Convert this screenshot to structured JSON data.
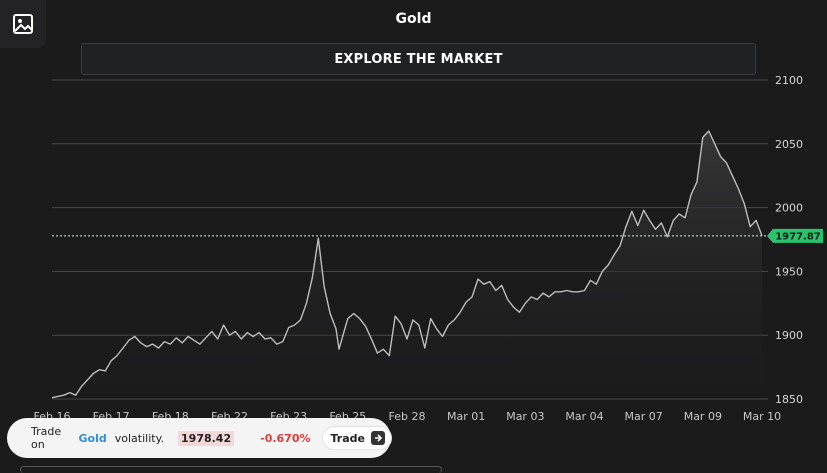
{
  "header": {
    "title": "Gold",
    "explore_label": "EXPLORE THE MARKET",
    "image_icon": "image-icon"
  },
  "chart_data": {
    "type": "area",
    "title": "Gold",
    "xlabel": "",
    "ylabel": "",
    "ylim": [
      1848,
      2105
    ],
    "y_ticks": [
      1850,
      1900,
      1950,
      2000,
      2050,
      2100
    ],
    "x_ticks": [
      "Feb 16",
      "Feb 17",
      "Feb 18",
      "Feb 22",
      "Feb 23",
      "Feb 25",
      "Feb 28",
      "Mar 01",
      "Mar 03",
      "Mar 04",
      "Mar 07",
      "Mar 09",
      "Mar 10"
    ],
    "x_tick_index": [
      0,
      10,
      20,
      30,
      40,
      50,
      60,
      70,
      80,
      90,
      100,
      110,
      120
    ],
    "series": [
      {
        "name": "",
        "points": [
          [
            0,
            1851
          ],
          [
            2,
            1853
          ],
          [
            3,
            1855
          ],
          [
            4,
            1853
          ],
          [
            5,
            1860
          ],
          [
            6,
            1865
          ],
          [
            7,
            1870
          ],
          [
            8,
            1873
          ],
          [
            9,
            1872
          ],
          [
            10,
            1880
          ],
          [
            11,
            1884
          ],
          [
            12,
            1890
          ],
          [
            13,
            1896
          ],
          [
            14,
            1899
          ],
          [
            15,
            1894
          ],
          [
            16,
            1891
          ],
          [
            17,
            1893
          ],
          [
            18,
            1890
          ],
          [
            19,
            1895
          ],
          [
            20,
            1893
          ],
          [
            21,
            1898
          ],
          [
            22,
            1894
          ],
          [
            23,
            1899
          ],
          [
            24,
            1896
          ],
          [
            25,
            1893
          ],
          [
            26,
            1898
          ],
          [
            27,
            1903
          ],
          [
            28,
            1897
          ],
          [
            29,
            1908
          ],
          [
            30,
            1900
          ],
          [
            31,
            1903
          ],
          [
            32,
            1897
          ],
          [
            33,
            1902
          ],
          [
            34,
            1899
          ],
          [
            35,
            1902
          ],
          [
            36,
            1897
          ],
          [
            37,
            1898
          ],
          [
            38,
            1893
          ],
          [
            39,
            1895
          ],
          [
            40,
            1906
          ],
          [
            41,
            1908
          ],
          [
            42,
            1912
          ],
          [
            43,
            1925
          ],
          [
            44,
            1945
          ],
          [
            45,
            1976
          ],
          [
            46,
            1938
          ],
          [
            47,
            1917
          ],
          [
            48,
            1905
          ],
          [
            48.5,
            1889
          ],
          [
            49,
            1897
          ],
          [
            50,
            1913
          ],
          [
            51,
            1917
          ],
          [
            52,
            1913
          ],
          [
            53,
            1907
          ],
          [
            54,
            1897
          ],
          [
            55,
            1886
          ],
          [
            56,
            1889
          ],
          [
            57,
            1884
          ],
          [
            58,
            1915
          ],
          [
            59,
            1909
          ],
          [
            60,
            1897
          ],
          [
            61,
            1912
          ],
          [
            62,
            1908
          ],
          [
            63,
            1890
          ],
          [
            64,
            1913
          ],
          [
            65,
            1905
          ],
          [
            66,
            1899
          ],
          [
            67,
            1908
          ],
          [
            68,
            1912
          ],
          [
            69,
            1918
          ],
          [
            70,
            1926
          ],
          [
            71,
            1930
          ],
          [
            72,
            1944
          ],
          [
            73,
            1940
          ],
          [
            74,
            1942
          ],
          [
            75,
            1935
          ],
          [
            76,
            1939
          ],
          [
            77,
            1928
          ],
          [
            78,
            1922
          ],
          [
            79,
            1918
          ],
          [
            80,
            1925
          ],
          [
            81,
            1930
          ],
          [
            82,
            1928
          ],
          [
            83,
            1933
          ],
          [
            84,
            1930
          ],
          [
            85,
            1934
          ],
          [
            86,
            1934
          ],
          [
            87,
            1935
          ],
          [
            88,
            1934
          ],
          [
            89,
            1934
          ],
          [
            90,
            1935
          ],
          [
            91,
            1943
          ],
          [
            92,
            1940
          ],
          [
            93,
            1950
          ],
          [
            94,
            1955
          ],
          [
            95,
            1963
          ],
          [
            96,
            1970
          ],
          [
            97,
            1985
          ],
          [
            98,
            1997
          ],
          [
            99,
            1986
          ],
          [
            100,
            1998
          ],
          [
            101,
            1990
          ],
          [
            102,
            1983
          ],
          [
            103,
            1988
          ],
          [
            104,
            1977
          ],
          [
            105,
            1990
          ],
          [
            106,
            1995
          ],
          [
            107,
            1992
          ],
          [
            108,
            2010
          ],
          [
            109,
            2020
          ],
          [
            110,
            2055
          ],
          [
            111,
            2060
          ],
          [
            112,
            2050
          ],
          [
            113,
            2040
          ],
          [
            114,
            2035
          ],
          [
            115,
            2025
          ],
          [
            116,
            2015
          ],
          [
            117,
            2003
          ],
          [
            118,
            1985
          ],
          [
            119,
            1990
          ],
          [
            120,
            1977.87
          ]
        ]
      }
    ],
    "last_value": "1977.87",
    "grid": true,
    "line_color": "#bdbdbd",
    "last_marker_color": "#2bc26f"
  },
  "trade_bar": {
    "prefix": "Trade on",
    "asset": "Gold",
    "suffix": "volatility.",
    "price": "1978.42",
    "change": "-0.670%",
    "button_label": "Trade",
    "arrow_icon": "arrow-right-icon"
  }
}
